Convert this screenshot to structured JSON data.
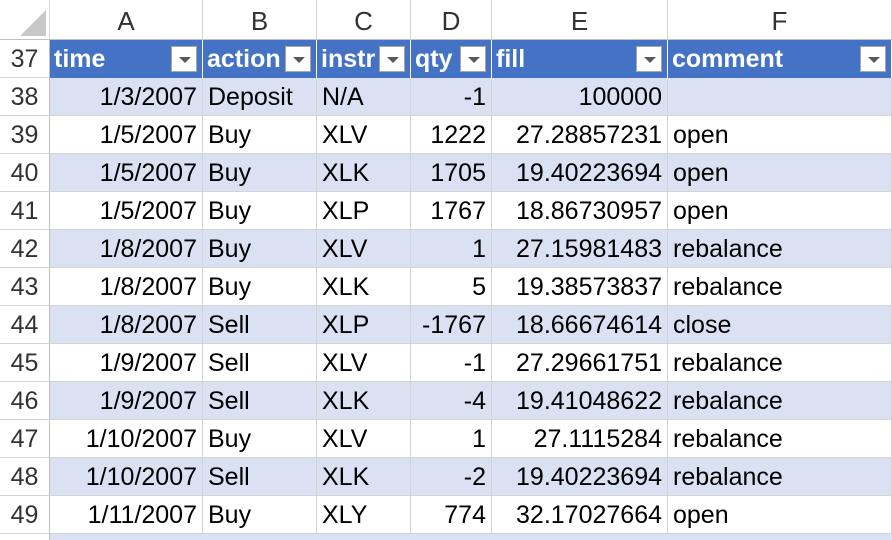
{
  "columns": [
    "A",
    "B",
    "C",
    "D",
    "E",
    "F"
  ],
  "header_row": {
    "row_number": "37",
    "labels": [
      "time",
      "action",
      "instr",
      "qty",
      "fill",
      "comment"
    ]
  },
  "rows": [
    {
      "n": "38",
      "time": "1/3/2007",
      "action": "Deposit",
      "instr": "N/A",
      "qty": "-1",
      "fill": "100000",
      "comment": ""
    },
    {
      "n": "39",
      "time": "1/5/2007",
      "action": "Buy",
      "instr": "XLV",
      "qty": "1222",
      "fill": "27.28857231",
      "comment": "open"
    },
    {
      "n": "40",
      "time": "1/5/2007",
      "action": "Buy",
      "instr": "XLK",
      "qty": "1705",
      "fill": "19.40223694",
      "comment": "open"
    },
    {
      "n": "41",
      "time": "1/5/2007",
      "action": "Buy",
      "instr": "XLP",
      "qty": "1767",
      "fill": "18.86730957",
      "comment": "open"
    },
    {
      "n": "42",
      "time": "1/8/2007",
      "action": "Buy",
      "instr": "XLV",
      "qty": "1",
      "fill": "27.15981483",
      "comment": "rebalance"
    },
    {
      "n": "43",
      "time": "1/8/2007",
      "action": "Buy",
      "instr": "XLK",
      "qty": "5",
      "fill": "19.38573837",
      "comment": "rebalance"
    },
    {
      "n": "44",
      "time": "1/8/2007",
      "action": "Sell",
      "instr": "XLP",
      "qty": "-1767",
      "fill": "18.66674614",
      "comment": "close"
    },
    {
      "n": "45",
      "time": "1/9/2007",
      "action": "Sell",
      "instr": "XLV",
      "qty": "-1",
      "fill": "27.29661751",
      "comment": "rebalance"
    },
    {
      "n": "46",
      "time": "1/9/2007",
      "action": "Sell",
      "instr": "XLK",
      "qty": "-4",
      "fill": "19.41048622",
      "comment": "rebalance"
    },
    {
      "n": "47",
      "time": "1/10/2007",
      "action": "Buy",
      "instr": "XLV",
      "qty": "1",
      "fill": "27.1115284",
      "comment": "rebalance"
    },
    {
      "n": "48",
      "time": "1/10/2007",
      "action": "Sell",
      "instr": "XLK",
      "qty": "-2",
      "fill": "19.40223694",
      "comment": "rebalance"
    },
    {
      "n": "49",
      "time": "1/11/2007",
      "action": "Buy",
      "instr": "XLY",
      "qty": "774",
      "fill": "32.17027664",
      "comment": "open"
    }
  ],
  "colors": {
    "header_fill": "#4472c4",
    "band_fill": "#d9e1f2",
    "header_text": "#ffffff"
  },
  "icons": {
    "select_all": "select-all-triangle-icon",
    "filter": "filter-dropdown-icon"
  }
}
